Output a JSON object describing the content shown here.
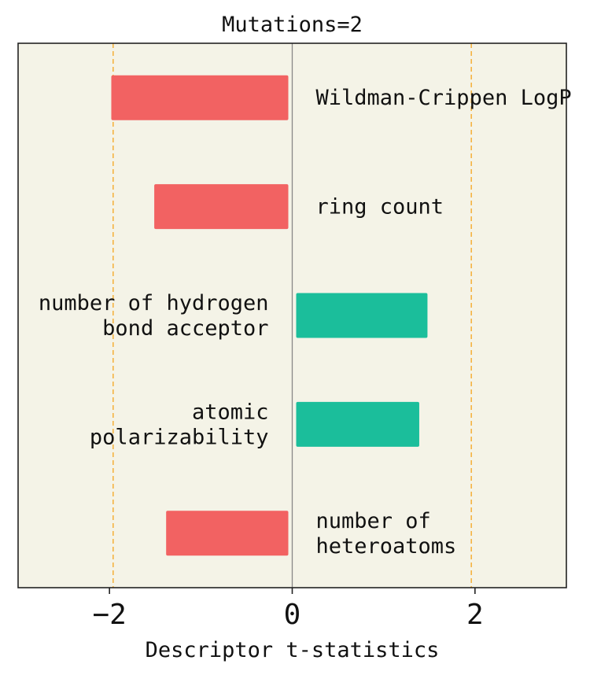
{
  "chart_data": {
    "type": "bar",
    "orientation": "horizontal",
    "title": "Mutations=2",
    "xlabel": "Descriptor t-statistics",
    "ylabel": "",
    "xlim": [
      -3,
      3
    ],
    "xticks": [
      -2,
      0,
      2
    ],
    "xtick_labels": [
      "−2",
      "0",
      "2"
    ],
    "threshold_lines": [
      -1.96,
      1.96
    ],
    "grid": false,
    "colors": {
      "negative": "#f26262",
      "positive": "#1bbe9b",
      "background": "#f4f3e7",
      "threshold": "#f5b342",
      "zero_line": "#888888"
    },
    "bars": [
      {
        "label": [
          "Wildman-Crippen LogP"
        ],
        "value": -1.98
      },
      {
        "label": [
          "ring count"
        ],
        "value": -1.51
      },
      {
        "label": [
          "number of hydrogen",
          "bond acceptor"
        ],
        "value": 1.48
      },
      {
        "label": [
          "atomic",
          "polarizability"
        ],
        "value": 1.39
      },
      {
        "label": [
          "number of",
          "heteroatoms"
        ],
        "value": -1.38
      }
    ]
  }
}
